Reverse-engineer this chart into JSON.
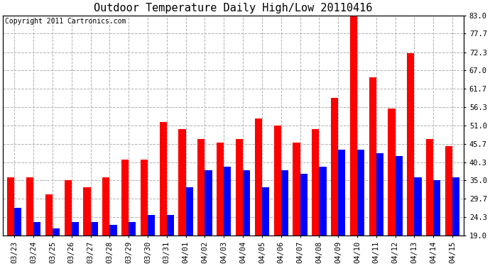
{
  "title": "Outdoor Temperature Daily High/Low 20110416",
  "copyright": "Copyright 2011 Cartronics.com",
  "dates": [
    "03/23",
    "03/24",
    "03/25",
    "03/26",
    "03/27",
    "03/28",
    "03/29",
    "03/30",
    "03/31",
    "04/01",
    "04/02",
    "04/03",
    "04/04",
    "04/05",
    "04/06",
    "04/07",
    "04/08",
    "04/09",
    "04/10",
    "04/11",
    "04/12",
    "04/13",
    "04/14",
    "04/15"
  ],
  "highs": [
    36,
    36,
    31,
    35,
    33,
    36,
    41,
    41,
    52,
    50,
    47,
    46,
    47,
    53,
    51,
    46,
    50,
    59,
    83,
    65,
    56,
    72,
    47,
    45
  ],
  "lows": [
    27,
    23,
    21,
    23,
    23,
    22,
    23,
    25,
    25,
    33,
    38,
    39,
    38,
    33,
    38,
    37,
    39,
    44,
    44,
    43,
    42,
    36,
    35,
    36
  ],
  "y_ticks": [
    19.0,
    24.3,
    29.7,
    35.0,
    40.3,
    45.7,
    51.0,
    56.3,
    61.7,
    67.0,
    72.3,
    77.7,
    83.0
  ],
  "ylim": [
    19.0,
    83.0
  ],
  "ybase": 19.0,
  "bar_width": 0.38,
  "high_color": "#ff0000",
  "low_color": "#0000ff",
  "bg_color": "#ffffff",
  "grid_color": "#b0b0b0",
  "title_fontsize": 11,
  "copyright_fontsize": 7,
  "tick_fontsize": 7.5
}
